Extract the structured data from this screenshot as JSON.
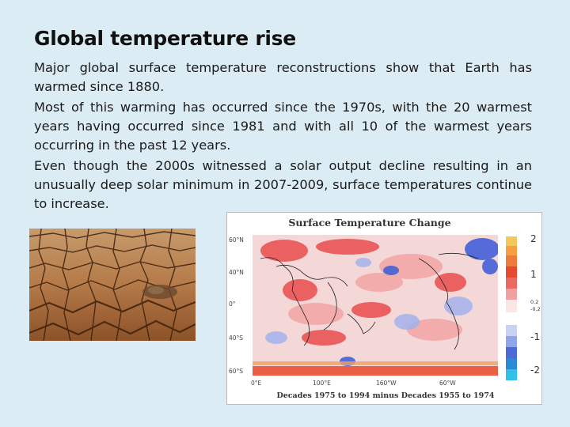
{
  "slide": {
    "title": "Global temperature rise",
    "paragraphs": [
      "Major global surface temperature reconstructions show that Earth has warmed since 1880.",
      "Most of this warming has occurred since the 1970s, with the 20 warmest years having occurred since 1981 and with all 10 of the warmest years occurring in the past 12 years.",
      "Even though the 2000s witnessed a solar output decline resulting in an unusually deep solar minimum in 2007-2009, surface temperatures continue to increase."
    ]
  },
  "figure": {
    "title": "Surface Temperature Change",
    "lat_labels": [
      "60°N",
      "40°N",
      "0°",
      "40°S",
      "60°S"
    ],
    "lon_labels": [
      "0°E",
      "100°E",
      "160°W",
      "60°W"
    ],
    "scale_ticks": [
      "2",
      "1",
      "0.2",
      "-0.2",
      "-1",
      "-2"
    ],
    "caption": "Decades 1975 to 1994  minus  Decades 1955 to 1974"
  },
  "colors": {
    "background": "#dcecf4",
    "warm": "#e83030",
    "cool": "#2a4fd0"
  }
}
